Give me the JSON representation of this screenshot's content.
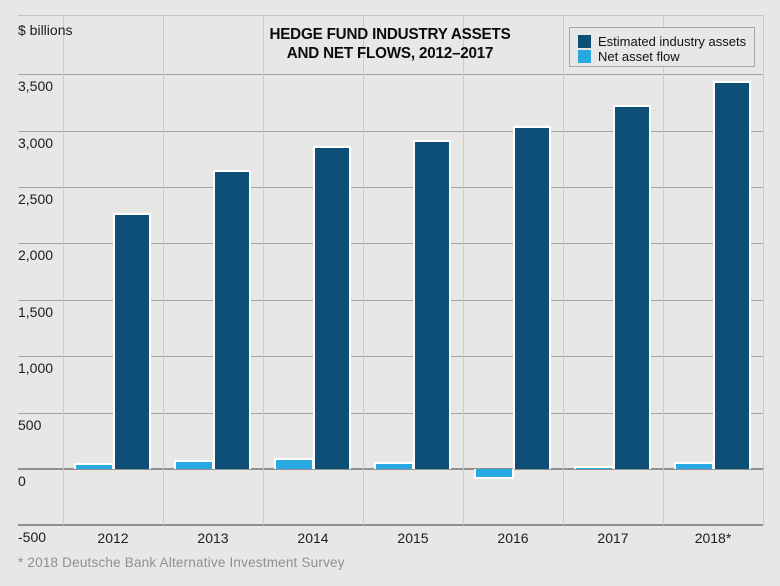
{
  "header": {
    "unit_label": "$ billions",
    "title_line1": "HEDGE FUND INDUSTRY ASSETS",
    "title_line2": "AND NET FLOWS, 2012–2017"
  },
  "legend": {
    "items": [
      {
        "label": "Estimated industry assets",
        "color": "#0d4f76"
      },
      {
        "label": "Net asset flow",
        "color": "#29a9e1"
      }
    ]
  },
  "footer": {
    "source_note": "* 2018 Deutsche Bank Alternative Investment Survey"
  },
  "colors": {
    "background": "#e7e7e5",
    "dark_bar": "#0d4f76",
    "light_bar": "#29a9e1",
    "gridline": "#a3a3a1",
    "major_gridline": "#8f8f8d",
    "vertical_gridline": "#cbcbc9",
    "text": "#1c1c1a",
    "source_text": "#90908e"
  },
  "chart_data": {
    "type": "bar",
    "title": "HEDGE FUND INDUSTRY ASSETS AND NET FLOWS, 2012–2017",
    "xlabel": "",
    "ylabel": "$ billions",
    "categories": [
      "2012",
      "2013",
      "2014",
      "2015",
      "2016",
      "2017",
      "2018*"
    ],
    "series": [
      {
        "name": "Estimated industry assets",
        "color": "#0d4f76",
        "values": [
          2250,
          2630,
          2850,
          2900,
          3020,
          3210,
          3420
        ]
      },
      {
        "name": "Net asset flow",
        "color": "#29a9e1",
        "values": [
          34,
          64,
          76,
          44,
          -70,
          10,
          41
        ]
      }
    ],
    "ylim": [
      -500,
      4025
    ],
    "yticks": [
      3500,
      3000,
      2500,
      2000,
      1500,
      1000,
      500,
      0,
      -500
    ],
    "ytick_labels": [
      "3,500",
      "3,000",
      "2,500",
      "2,000",
      "1,500",
      "1,000",
      "500",
      "0",
      "-500"
    ],
    "grid": true,
    "legend_position": "top-right",
    "source_note": "* 2018 Deutsche Bank Alternative Investment Survey"
  }
}
